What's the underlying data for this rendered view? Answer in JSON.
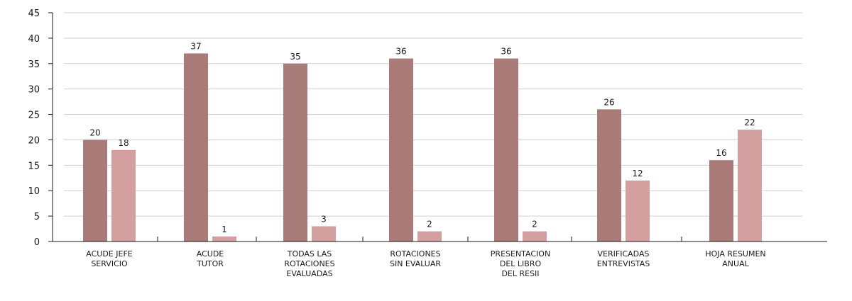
{
  "chart_data": {
    "type": "bar",
    "categories": [
      [
        "ACUDE JEFE",
        "SERVICIO"
      ],
      [
        "ACUDE",
        "TUTOR"
      ],
      [
        "TODAS LAS",
        "ROTACIONES",
        "EVALUADAS"
      ],
      [
        "ROTACIONES",
        "SIN EVALUAR"
      ],
      [
        "PRESENTACION",
        "DEL LIBRO",
        "DEL RESII"
      ],
      [
        "VERIFICADAS",
        "ENTREVISTAS"
      ],
      [
        "HOJA RESUMEN",
        "ANUAL"
      ]
    ],
    "series": [
      {
        "values": [
          20,
          37,
          35,
          36,
          36,
          26,
          16
        ],
        "color": "#a87a78"
      },
      {
        "values": [
          18,
          1,
          3,
          2,
          2,
          12,
          22
        ],
        "color": "#d39f9f"
      }
    ],
    "ylim": [
      0,
      45
    ],
    "yticks": [
      0,
      5,
      10,
      15,
      20,
      25,
      30,
      35,
      40,
      45
    ],
    "data_labels": true,
    "grid": true,
    "legend": "none",
    "colors": {
      "grid": "#cfcfcf",
      "axis": "#1a1a1a"
    }
  }
}
